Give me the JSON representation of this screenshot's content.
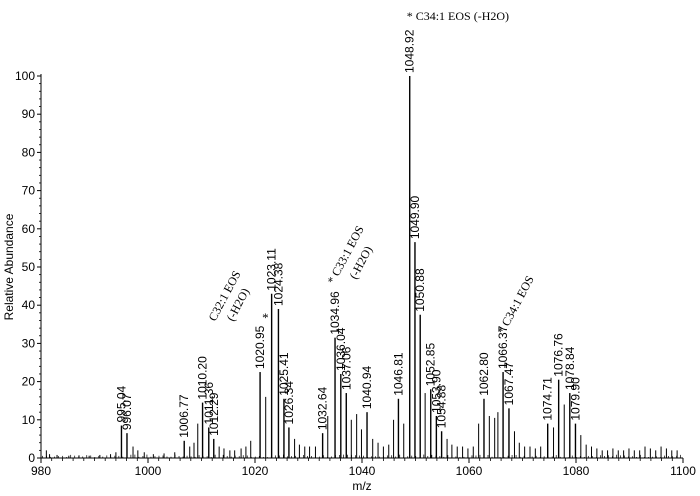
{
  "chart_data": {
    "type": "bar",
    "xlabel": "m/z",
    "ylabel": "Relative Abundance",
    "xlim": [
      980,
      1100
    ],
    "ylim": [
      0,
      100
    ],
    "xticks": [
      "980",
      "1000",
      "1020",
      "1040",
      "1060",
      "1080",
      "1100"
    ],
    "yticks": [
      "0",
      "10",
      "20",
      "30",
      "40",
      "50",
      "60",
      "70",
      "80",
      "90",
      "100"
    ],
    "labeled_peaks": [
      {
        "x": 995.04,
        "y": 8.5,
        "label": "995.04"
      },
      {
        "x": 996.07,
        "y": 6.5,
        "label": "996.07"
      },
      {
        "x": 1006.77,
        "y": 4.5,
        "label": "1006.77"
      },
      {
        "x": 1010.2,
        "y": 14.5,
        "label": "1010.20"
      },
      {
        "x": 1011.36,
        "y": 8,
        "label": "1011.36"
      },
      {
        "x": 1012.29,
        "y": 5,
        "label": "1012.29"
      },
      {
        "x": 1020.95,
        "y": 22.5,
        "label": "1020.95"
      },
      {
        "x": 1023.11,
        "y": 43,
        "label": "1023.11"
      },
      {
        "x": 1024.38,
        "y": 39,
        "label": "1024.38"
      },
      {
        "x": 1025.41,
        "y": 15.5,
        "label": "1025.41"
      },
      {
        "x": 1026.34,
        "y": 8,
        "label": "1026.34"
      },
      {
        "x": 1032.64,
        "y": 6.5,
        "label": "1032.64"
      },
      {
        "x": 1034.96,
        "y": 31.5,
        "label": "1034.96"
      },
      {
        "x": 1036.04,
        "y": 22,
        "label": "1036.04"
      },
      {
        "x": 1037.06,
        "y": 17,
        "label": "1037.06"
      },
      {
        "x": 1040.94,
        "y": 12,
        "label": "1040.94"
      },
      {
        "x": 1046.81,
        "y": 15.5,
        "label": "1046.81"
      },
      {
        "x": 1048.92,
        "y": 100,
        "label": "1048.92"
      },
      {
        "x": 1049.9,
        "y": 56.5,
        "label": "1049.90"
      },
      {
        "x": 1050.88,
        "y": 37.5,
        "label": "1050.88"
      },
      {
        "x": 1052.85,
        "y": 18,
        "label": "1052.85"
      },
      {
        "x": 1053.9,
        "y": 11,
        "label": "1053.90"
      },
      {
        "x": 1054.88,
        "y": 7,
        "label": "1054.88"
      },
      {
        "x": 1062.8,
        "y": 15.5,
        "label": "1062.80"
      },
      {
        "x": 1066.37,
        "y": 22.5,
        "label": "1066.37"
      },
      {
        "x": 1067.47,
        "y": 13,
        "label": "1067.47"
      },
      {
        "x": 1074.71,
        "y": 9,
        "label": "1074.71"
      },
      {
        "x": 1076.76,
        "y": 20.5,
        "label": "1076.76"
      },
      {
        "x": 1078.84,
        "y": 17,
        "label": "1078.84"
      },
      {
        "x": 1079.9,
        "y": 9,
        "label": "1079.90"
      }
    ],
    "minor_peaks": [
      {
        "x": 981.0,
        "y": 2
      },
      {
        "x": 981.6,
        "y": 1
      },
      {
        "x": 983.0,
        "y": 0.8
      },
      {
        "x": 985.2,
        "y": 0.6
      },
      {
        "x": 987.1,
        "y": 0.7
      },
      {
        "x": 989.0,
        "y": 0.6
      },
      {
        "x": 991.0,
        "y": 0.8
      },
      {
        "x": 993.0,
        "y": 1
      },
      {
        "x": 994.0,
        "y": 1.5
      },
      {
        "x": 997.2,
        "y": 3
      },
      {
        "x": 998.1,
        "y": 2
      },
      {
        "x": 999.3,
        "y": 1.5
      },
      {
        "x": 1001.0,
        "y": 1
      },
      {
        "x": 1003.0,
        "y": 1.2
      },
      {
        "x": 1005.0,
        "y": 1.5
      },
      {
        "x": 1007.8,
        "y": 3
      },
      {
        "x": 1008.6,
        "y": 4
      },
      {
        "x": 1009.3,
        "y": 9
      },
      {
        "x": 1013.3,
        "y": 3
      },
      {
        "x": 1014.2,
        "y": 2.5
      },
      {
        "x": 1015.3,
        "y": 2
      },
      {
        "x": 1016.2,
        "y": 2
      },
      {
        "x": 1017.4,
        "y": 2.5
      },
      {
        "x": 1018.3,
        "y": 3
      },
      {
        "x": 1019.2,
        "y": 4.5
      },
      {
        "x": 1022.0,
        "y": 16
      },
      {
        "x": 1027.4,
        "y": 5
      },
      {
        "x": 1028.3,
        "y": 3.5
      },
      {
        "x": 1029.3,
        "y": 3
      },
      {
        "x": 1030.2,
        "y": 3
      },
      {
        "x": 1031.3,
        "y": 3
      },
      {
        "x": 1033.6,
        "y": 11
      },
      {
        "x": 1038.0,
        "y": 10
      },
      {
        "x": 1039.0,
        "y": 11.5
      },
      {
        "x": 1039.9,
        "y": 7.5
      },
      {
        "x": 1042.0,
        "y": 5
      },
      {
        "x": 1043.0,
        "y": 4
      },
      {
        "x": 1044.0,
        "y": 3
      },
      {
        "x": 1045.0,
        "y": 3.5
      },
      {
        "x": 1045.9,
        "y": 10
      },
      {
        "x": 1047.8,
        "y": 9
      },
      {
        "x": 1051.8,
        "y": 17
      },
      {
        "x": 1055.9,
        "y": 5
      },
      {
        "x": 1056.8,
        "y": 3.5
      },
      {
        "x": 1057.8,
        "y": 3
      },
      {
        "x": 1058.8,
        "y": 3
      },
      {
        "x": 1059.8,
        "y": 2.5
      },
      {
        "x": 1060.8,
        "y": 3
      },
      {
        "x": 1061.8,
        "y": 9
      },
      {
        "x": 1063.8,
        "y": 11
      },
      {
        "x": 1064.8,
        "y": 10.5
      },
      {
        "x": 1065.4,
        "y": 12
      },
      {
        "x": 1068.5,
        "y": 7
      },
      {
        "x": 1069.4,
        "y": 4
      },
      {
        "x": 1070.4,
        "y": 3
      },
      {
        "x": 1071.4,
        "y": 3
      },
      {
        "x": 1072.4,
        "y": 2.5
      },
      {
        "x": 1073.4,
        "y": 3
      },
      {
        "x": 1075.8,
        "y": 8
      },
      {
        "x": 1077.8,
        "y": 14
      },
      {
        "x": 1080.9,
        "y": 6
      },
      {
        "x": 1081.9,
        "y": 3.5
      },
      {
        "x": 1082.9,
        "y": 3
      },
      {
        "x": 1083.9,
        "y": 2.5
      },
      {
        "x": 1084.9,
        "y": 2
      },
      {
        "x": 1085.9,
        "y": 2
      },
      {
        "x": 1086.9,
        "y": 2.5
      },
      {
        "x": 1087.9,
        "y": 2
      },
      {
        "x": 1088.9,
        "y": 2
      },
      {
        "x": 1089.9,
        "y": 2.5
      },
      {
        "x": 1090.9,
        "y": 2
      },
      {
        "x": 1091.9,
        "y": 2
      },
      {
        "x": 1092.9,
        "y": 3
      },
      {
        "x": 1093.9,
        "y": 2.5
      },
      {
        "x": 1094.9,
        "y": 2
      },
      {
        "x": 1095.9,
        "y": 3
      },
      {
        "x": 1096.9,
        "y": 2.5
      },
      {
        "x": 1097.9,
        "y": 2
      },
      {
        "x": 1098.9,
        "y": 2
      }
    ],
    "annotations": [
      {
        "text": "* C34:1 EOS (-H2O)",
        "x": 1048.92,
        "style": "horizontal"
      },
      {
        "text": "C32:1 EOS",
        "x": 1020.95,
        "style": "rotated"
      },
      {
        "text": "(-H2O)",
        "x": 1020.95,
        "style": "rotated"
      },
      {
        "text": "*",
        "x": 1020.95,
        "style": "star"
      },
      {
        "text": "* C33:1 EOS",
        "x": 1034.96,
        "style": "rotated"
      },
      {
        "text": "(-H2O)",
        "x": 1034.96,
        "style": "rotated"
      },
      {
        "text": "* C34:1 EOS",
        "x": 1066.37,
        "style": "rotated"
      }
    ]
  }
}
